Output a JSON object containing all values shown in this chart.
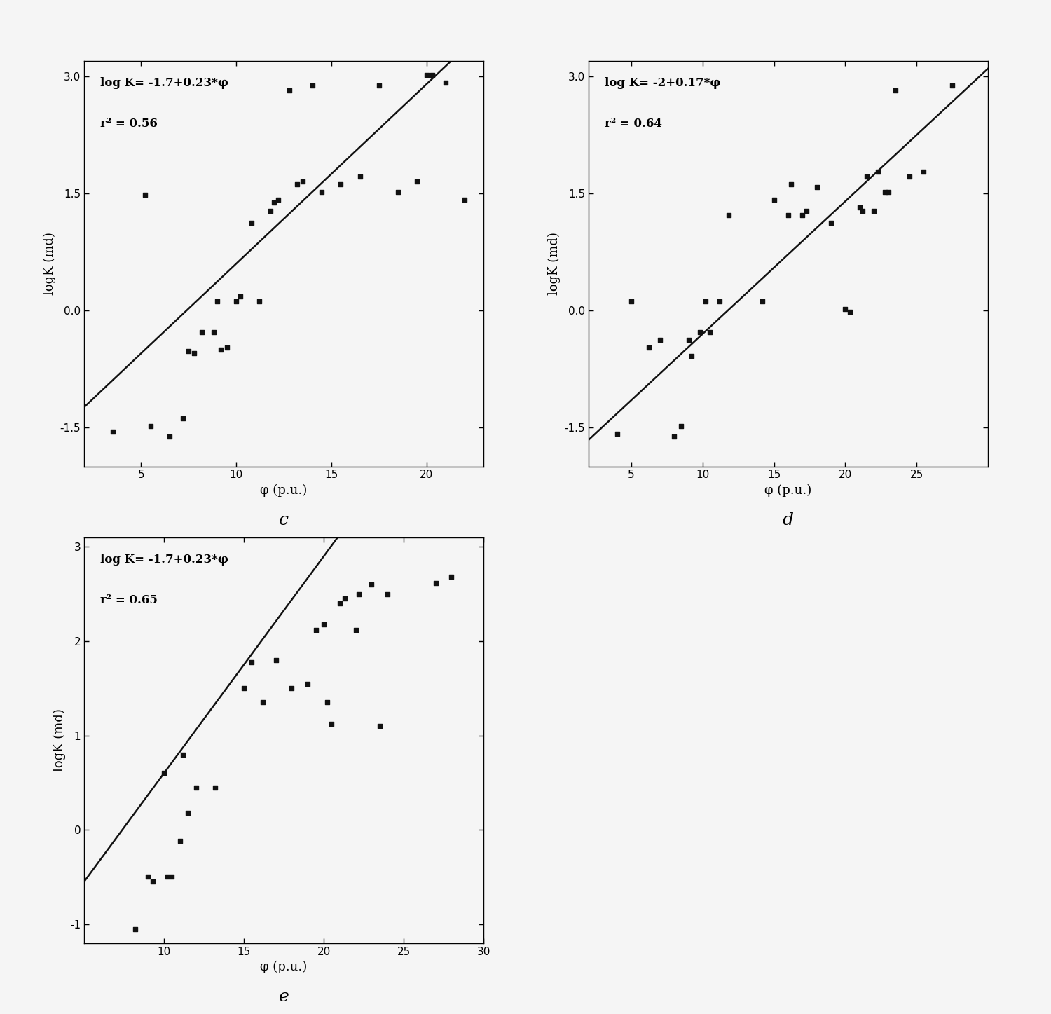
{
  "plots": [
    {
      "label": "c",
      "equation": "log K= -1.7+0.23*φ",
      "r2": "r² = 0.56",
      "intercept": -1.7,
      "slope": 0.23,
      "xlim": [
        2,
        23
      ],
      "ylim": [
        -2.0,
        3.2
      ],
      "xticks": [
        5,
        10,
        15,
        20
      ],
      "ytick_vals": [
        -1.5,
        0.0,
        1.5,
        3.0
      ],
      "ytick_labels": [
        "-1.5",
        "0.0",
        "1.5",
        "3.0"
      ],
      "xlabel": "φ (p.u.)",
      "ylabel": "logK (md)",
      "line_xmin": 2,
      "line_xmax": 23,
      "scatter_x": [
        3.5,
        5.2,
        5.5,
        6.5,
        7.2,
        7.5,
        7.8,
        8.2,
        8.8,
        9.0,
        9.2,
        9.5,
        10.0,
        10.2,
        10.8,
        11.2,
        11.8,
        12.0,
        12.2,
        12.8,
        13.2,
        13.5,
        14.0,
        14.5,
        15.5,
        16.5,
        17.5,
        18.5,
        19.5,
        20.0,
        20.3,
        21.0,
        22.0
      ],
      "scatter_y": [
        -1.55,
        1.48,
        -1.48,
        -1.62,
        -1.38,
        -0.52,
        -0.55,
        -0.28,
        -0.28,
        0.12,
        -0.5,
        -0.48,
        0.12,
        0.18,
        1.12,
        0.12,
        1.28,
        1.38,
        1.42,
        2.82,
        1.62,
        1.65,
        2.88,
        1.52,
        1.62,
        1.72,
        2.88,
        1.52,
        1.65,
        3.02,
        3.02,
        2.92,
        1.42
      ]
    },
    {
      "label": "d",
      "equation": "log K= -2+0.17*φ",
      "r2": "r² = 0.64",
      "intercept": -2.0,
      "slope": 0.17,
      "xlim": [
        2,
        30
      ],
      "ylim": [
        -2.0,
        3.2
      ],
      "xticks": [
        5,
        10,
        15,
        20,
        25
      ],
      "ytick_vals": [
        -1.5,
        0.0,
        1.5,
        3.0
      ],
      "ytick_labels": [
        "-1.5",
        "0.0",
        "1.5",
        "3.0"
      ],
      "xlabel": "φ (p.u.)",
      "ylabel": "logK (md)",
      "line_xmin": 2,
      "line_xmax": 30,
      "scatter_x": [
        4.0,
        5.0,
        6.2,
        7.0,
        8.0,
        8.5,
        9.0,
        9.2,
        9.8,
        10.2,
        10.5,
        11.2,
        11.8,
        14.2,
        15.0,
        16.0,
        16.2,
        17.0,
        17.3,
        18.0,
        19.0,
        20.0,
        20.3,
        21.0,
        21.2,
        21.5,
        22.0,
        22.3,
        22.8,
        23.0,
        23.5,
        24.5,
        25.5,
        27.5
      ],
      "scatter_y": [
        -1.58,
        0.12,
        -0.48,
        -0.38,
        -1.62,
        -1.48,
        -0.38,
        -0.58,
        -0.28,
        0.12,
        -0.28,
        0.12,
        1.22,
        0.12,
        1.42,
        1.22,
        1.62,
        1.22,
        1.28,
        1.58,
        1.12,
        0.02,
        -0.02,
        1.32,
        1.28,
        1.72,
        1.28,
        1.78,
        1.52,
        1.52,
        2.82,
        1.72,
        1.78,
        2.88
      ]
    },
    {
      "label": "e",
      "equation": "log K= -1.7+0.23*φ",
      "r2": "r² = 0.65",
      "intercept": -1.7,
      "slope": 0.23,
      "xlim": [
        5,
        30
      ],
      "ylim": [
        -1.2,
        3.1
      ],
      "xticks": [
        10,
        15,
        20,
        25,
        30
      ],
      "ytick_vals": [
        -1.0,
        0.0,
        1.0,
        2.0,
        3.0
      ],
      "ytick_labels": [
        "-1",
        "0",
        "1",
        "2",
        "3"
      ],
      "xlabel": "φ (p.u.)",
      "ylabel": "logK (md)",
      "line_xmin": 5,
      "line_xmax": 30,
      "scatter_x": [
        8.2,
        9.0,
        9.3,
        10.0,
        10.2,
        10.5,
        11.0,
        11.2,
        11.5,
        12.0,
        13.2,
        15.0,
        15.5,
        16.2,
        17.0,
        18.0,
        19.0,
        19.5,
        20.0,
        20.2,
        20.5,
        21.0,
        21.3,
        22.0,
        22.2,
        23.0,
        23.5,
        24.0,
        27.0,
        28.0
      ],
      "scatter_y": [
        -1.05,
        -0.5,
        -0.55,
        0.6,
        -0.5,
        -0.5,
        -0.12,
        0.8,
        0.18,
        0.45,
        0.45,
        1.5,
        1.78,
        1.35,
        1.8,
        1.5,
        1.55,
        2.12,
        2.18,
        1.35,
        1.12,
        2.4,
        2.45,
        2.12,
        2.5,
        2.6,
        1.1,
        2.5,
        2.62,
        2.68
      ]
    }
  ],
  "marker": "s",
  "marker_size": 22,
  "marker_color": "#111111",
  "line_color": "#111111",
  "line_width": 1.8,
  "background_color": "#f5f5f5",
  "annotation_fontsize": 12,
  "label_fontsize": 13,
  "tick_fontsize": 11,
  "subplot_label_fontsize": 18
}
